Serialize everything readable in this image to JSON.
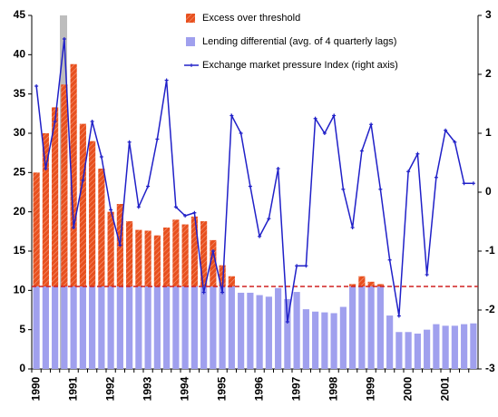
{
  "chart_data": {
    "type": "bar",
    "categories": [
      "1990",
      null,
      null,
      null,
      "1991",
      null,
      null,
      null,
      "1992",
      null,
      null,
      null,
      "1993",
      null,
      null,
      null,
      "1994",
      null,
      null,
      null,
      "1995",
      null,
      null,
      null,
      "1996",
      null,
      null,
      null,
      "1997",
      null,
      null,
      null,
      "1998",
      null,
      null,
      null,
      "1999",
      null,
      null,
      null,
      "2000",
      null,
      null,
      null,
      "2001",
      null,
      null,
      null
    ],
    "series": [
      {
        "name": "Lending differential (avg. of 4 quarterly lags)",
        "color": "#a0a0ee",
        "values": [
          10.5,
          10.5,
          10.5,
          10.5,
          10.5,
          10.5,
          10.5,
          10.5,
          10.5,
          10.5,
          10.5,
          10.5,
          10.5,
          10.5,
          10.5,
          10.5,
          10.5,
          10.5,
          10.5,
          10.5,
          10.5,
          10.5,
          9.7,
          9.7,
          9.4,
          9.2,
          10.3,
          8.9,
          9.8,
          7.6,
          7.3,
          7.2,
          7.1,
          7.9,
          10.5,
          10.5,
          10.5,
          10.5,
          6.8,
          4.7,
          4.7,
          4.5,
          5,
          5.7,
          5.5,
          5.5,
          5.7,
          5.8
        ]
      },
      {
        "name": "Excess over threshold",
        "color": "#e8501e",
        "values": [
          14.5,
          19.5,
          22.8,
          25.7,
          28.3,
          20.7,
          18.5,
          15,
          9.5,
          10.5,
          8.3,
          7.2,
          7.1,
          6.5,
          7.5,
          8.5,
          7.9,
          8.9,
          8.3,
          5.9,
          2.7,
          1.3,
          0,
          0,
          0,
          0,
          0,
          0,
          0,
          0,
          0,
          0,
          0,
          0,
          0.3,
          1.3,
          0.6,
          0.3,
          0,
          0,
          0,
          0,
          0,
          0,
          0,
          0,
          0,
          0
        ]
      },
      {
        "name": "Exchange market pressure Index (right axis)",
        "color": "#2020c8",
        "type": "line",
        "axis": "y2",
        "values": [
          1.8,
          0.4,
          1.2,
          2.6,
          -0.6,
          0.2,
          1.2,
          0.6,
          -0.3,
          -0.9,
          0.85,
          -0.25,
          0.1,
          0.9,
          1.9,
          -0.25,
          -0.4,
          -0.35,
          -1.7,
          -1.0,
          -1.7,
          1.3,
          1.0,
          0.1,
          -0.75,
          -0.45,
          0.4,
          -2.2,
          -1.25,
          -1.25,
          1.25,
          1.0,
          1.3,
          0.05,
          -0.6,
          0.7,
          1.15,
          0.05,
          -1.15,
          -2.1,
          0.35,
          0.65,
          -1.4,
          0.25,
          1.05,
          0.85,
          0.15,
          0.15
        ]
      }
    ],
    "threshold": 10.5,
    "threshold_color": "#d02020",
    "ylim": [
      0,
      45
    ],
    "yticks": [
      0,
      5,
      10,
      15,
      20,
      25,
      30,
      35,
      40,
      45
    ],
    "y2lim": [
      -3,
      3
    ],
    "y2ticks": [
      -3,
      -2,
      -1,
      0,
      1,
      2,
      3
    ]
  }
}
